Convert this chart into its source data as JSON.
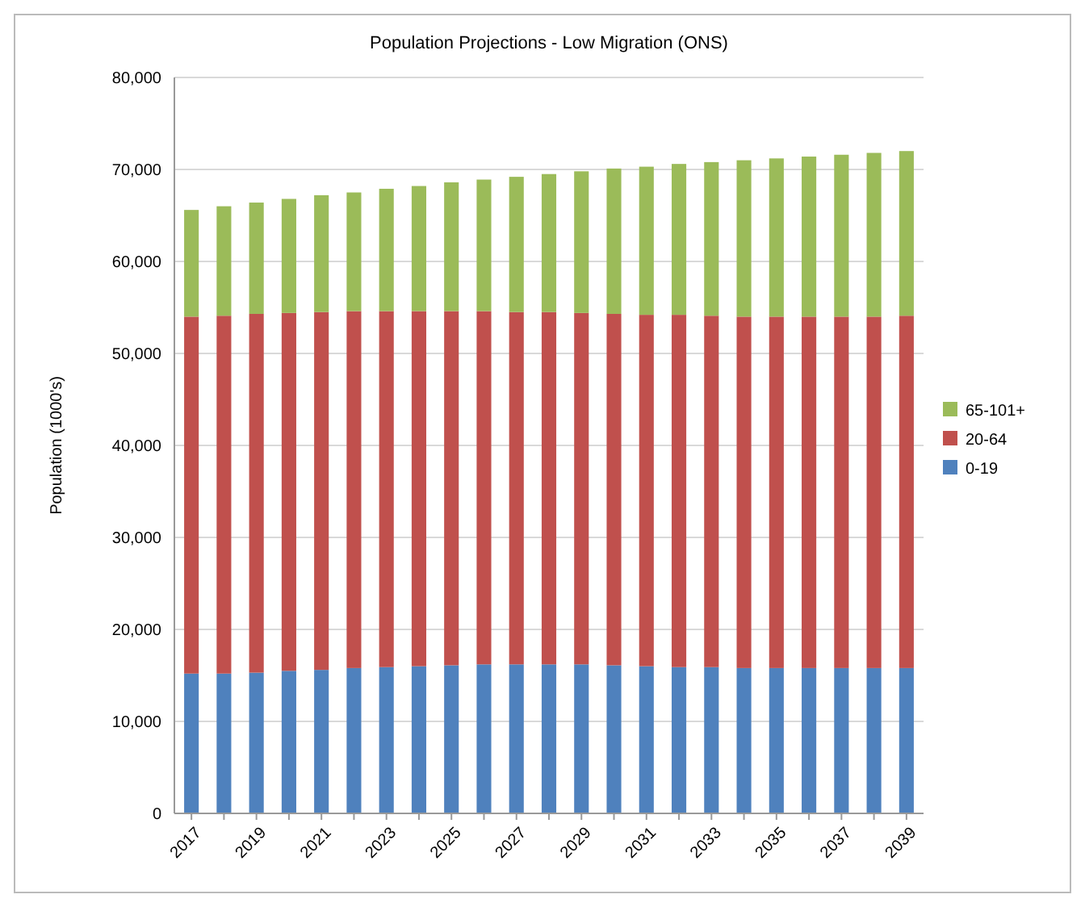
{
  "chart_data": {
    "type": "bar",
    "title": "Population Projections - Low Migration (ONS)",
    "ylabel": "Population (1000's)",
    "categories": [
      "2017",
      null,
      "2019",
      null,
      "2021",
      null,
      "2023",
      null,
      "2025",
      null,
      "2027",
      null,
      "2029",
      null,
      "2031",
      null,
      "2033",
      null,
      "2035",
      null,
      "2037",
      null,
      "2039"
    ],
    "stacked": true,
    "ylim": [
      0,
      80000
    ],
    "yticks": [
      0,
      {
        "value": 10000,
        "label": "10,000"
      },
      {
        "value": 20000,
        "label": "20,000"
      },
      {
        "value": 30000,
        "label": "30,000"
      },
      {
        "value": 40000,
        "label": "40,000"
      },
      {
        "value": 50000,
        "label": "50,000"
      },
      {
        "value": 60000,
        "label": "60,000"
      },
      {
        "value": 70000,
        "label": "70,000"
      },
      {
        "value": 80000,
        "label": "80,000"
      }
    ],
    "grid": "y",
    "legend": "right",
    "series": [
      {
        "name": "0-19",
        "color": "#4f81bd",
        "values": [
          15200,
          15200,
          15300,
          15500,
          15600,
          15800,
          15900,
          16000,
          16100,
          16200,
          16200,
          16200,
          16200,
          16100,
          16000,
          15900,
          15900,
          15800,
          15800,
          15800,
          15800,
          15800,
          15800
        ]
      },
      {
        "name": "20-64",
        "color": "#c0504d",
        "values": [
          38800,
          38900,
          39000,
          38900,
          38900,
          38800,
          38700,
          38600,
          38500,
          38400,
          38300,
          38300,
          38200,
          38200,
          38200,
          38300,
          38200,
          38200,
          38200,
          38200,
          38200,
          38200,
          38300
        ]
      },
      {
        "name": "65-101+",
        "color": "#9bbb59",
        "values": [
          11600,
          11900,
          12100,
          12400,
          12700,
          12900,
          13300,
          13600,
          14000,
          14300,
          14700,
          15000,
          15400,
          15800,
          16100,
          16400,
          16700,
          17000,
          17200,
          17400,
          17600,
          17800,
          17900
        ]
      }
    ]
  }
}
